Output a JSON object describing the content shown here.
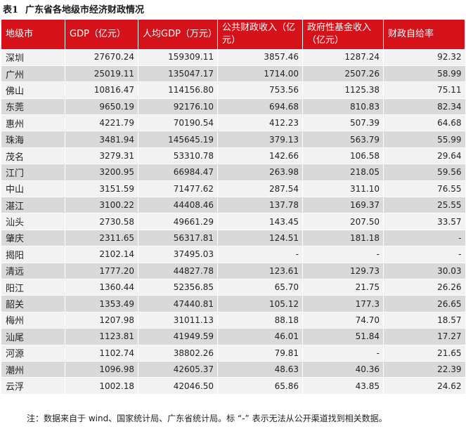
{
  "title": {
    "number": "表1",
    "text": "广东省各地级市经济财政情况"
  },
  "table": {
    "headers": [
      "地级市",
      "GDP（亿元）",
      "人均GDP（万元）",
      "公共财政收入（亿元）",
      "政府性基金收入（亿元）",
      "财政自给率"
    ],
    "rows": [
      [
        "深圳",
        "27670.24",
        "159309.11",
        "3857.46",
        "1287.24",
        "92.32"
      ],
      [
        "广州",
        "25019.11",
        "135047.17",
        "1714.00",
        "2507.26",
        "58.99"
      ],
      [
        "佛山",
        "10816.47",
        "114156.80",
        "753.56",
        "1125.38",
        "75.11"
      ],
      [
        "东莞",
        "9650.19",
        "92176.10",
        "694.68",
        "810.83",
        "82.34"
      ],
      [
        "惠州",
        "4221.79",
        "70190.54",
        "412.23",
        "507.39",
        "64.68"
      ],
      [
        "珠海",
        "3481.94",
        "145645.19",
        "379.13",
        "563.79",
        "55.99"
      ],
      [
        "茂名",
        "3279.31",
        "53310.78",
        "142.66",
        "106.58",
        "29.64"
      ],
      [
        "江门",
        "3200.95",
        "66984.47",
        "263.98",
        "218.05",
        "59.56"
      ],
      [
        "中山",
        "3151.59",
        "71477.62",
        "287.54",
        "311.10",
        "76.55"
      ],
      [
        "湛江",
        "3100.22",
        "44408.46",
        "137.78",
        "169.37",
        "25.55"
      ],
      [
        "汕头",
        "2730.58",
        "49661.29",
        "143.45",
        "207.50",
        "33.57"
      ],
      [
        "肇庆",
        "2311.65",
        "56317.81",
        "124.51",
        "181.18",
        "-"
      ],
      [
        "揭阳",
        "2102.14",
        "37495.03",
        "-",
        "-",
        "-"
      ],
      [
        "清远",
        "1777.20",
        "44827.78",
        "123.61",
        "129.73",
        "30.03"
      ],
      [
        "阳江",
        "1360.44",
        "52356.85",
        "65.70",
        "21.75",
        "26.26"
      ],
      [
        "韶关",
        "1353.49",
        "47440.81",
        "105.12",
        "177.3",
        "26.65"
      ],
      [
        "梅州",
        "1207.98",
        "31011.13",
        "88.18",
        "74.70",
        "18.57"
      ],
      [
        "汕尾",
        "1123.81",
        "41949.59",
        "46.01",
        "51.84",
        "17.27"
      ],
      [
        "河源",
        "1102.74",
        "38802.26",
        "79.81",
        "-",
        "21.65"
      ],
      [
        "潮州",
        "1096.98",
        "42605.37",
        "48.63",
        "40.36",
        "22.39"
      ],
      [
        "云浮",
        "1002.18",
        "42046.50",
        "65.86",
        "43.85",
        "24.62"
      ]
    ]
  },
  "note": "注：数据来自于 wind、国家统计局、广东省统计局。标 “-” 表示无法从公开渠道找到相关数据。",
  "colors": {
    "header_background": "#d5121a",
    "header_text": "#ffffff",
    "row_light": "#f2f2f2",
    "row_dark": "#d9d9d9"
  }
}
